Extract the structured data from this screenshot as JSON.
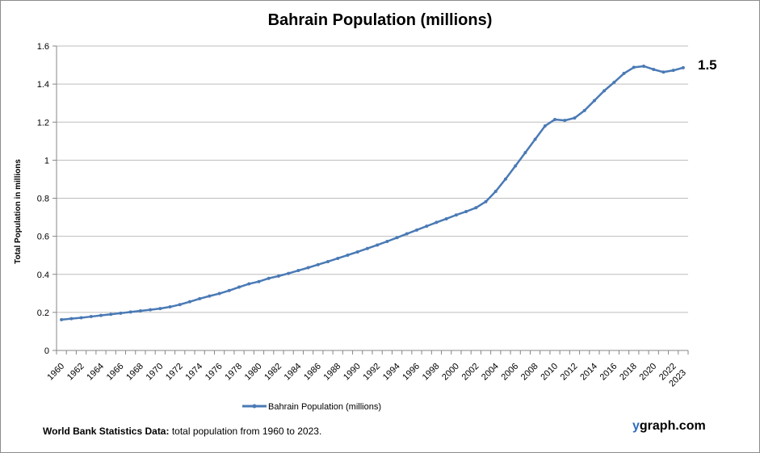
{
  "chart_data": {
    "type": "line",
    "title": "Bahrain Population (millions)",
    "xlabel": "",
    "ylabel": "Total Population  in millions",
    "ylim": [
      0,
      1.6
    ],
    "yticks": [
      "0",
      "0.2",
      "0.4",
      "0.6",
      "0.8",
      "1",
      "1.2",
      "1.4",
      "1.6"
    ],
    "grid": true,
    "legend_position": "bottom",
    "line_color": "#4a7ab5",
    "x": [
      1960,
      1961,
      1962,
      1963,
      1964,
      1965,
      1966,
      1967,
      1968,
      1969,
      1970,
      1971,
      1972,
      1973,
      1974,
      1975,
      1976,
      1977,
      1978,
      1979,
      1980,
      1981,
      1982,
      1983,
      1984,
      1985,
      1986,
      1987,
      1988,
      1989,
      1990,
      1991,
      1992,
      1993,
      1994,
      1995,
      1996,
      1997,
      1998,
      1999,
      2000,
      2001,
      2002,
      2003,
      2004,
      2005,
      2006,
      2007,
      2008,
      2009,
      2010,
      2011,
      2012,
      2013,
      2014,
      2015,
      2016,
      2017,
      2018,
      2019,
      2020,
      2021,
      2022,
      2023
    ],
    "xtick_labels": [
      "1960",
      "1962",
      "1964",
      "1966",
      "1968",
      "1970",
      "1972",
      "1974",
      "1976",
      "1978",
      "1980",
      "1982",
      "1984",
      "1986",
      "1988",
      "1990",
      "1992",
      "1994",
      "1996",
      "1998",
      "2000",
      "2002",
      "2004",
      "2006",
      "2008",
      "2010",
      "2012",
      "2014",
      "2016",
      "2018",
      "2020",
      "2022",
      "2023"
    ],
    "series": [
      {
        "name": "Bahrain Population (millions)",
        "values": [
          0.162,
          0.167,
          0.172,
          0.178,
          0.184,
          0.19,
          0.196,
          0.202,
          0.208,
          0.214,
          0.22,
          0.229,
          0.241,
          0.256,
          0.272,
          0.286,
          0.299,
          0.315,
          0.333,
          0.35,
          0.362,
          0.379,
          0.391,
          0.405,
          0.42,
          0.435,
          0.451,
          0.467,
          0.484,
          0.501,
          0.518,
          0.536,
          0.554,
          0.573,
          0.593,
          0.613,
          0.633,
          0.653,
          0.673,
          0.692,
          0.712,
          0.73,
          0.75,
          0.782,
          0.836,
          0.901,
          0.97,
          1.04,
          1.11,
          1.18,
          1.214,
          1.209,
          1.222,
          1.261,
          1.313,
          1.365,
          1.409,
          1.456,
          1.488,
          1.494,
          1.477,
          1.463,
          1.472,
          1.486
        ]
      }
    ],
    "annotation": "1.5"
  },
  "footer": {
    "bold": "World Bank Statistics Data:",
    "text": " total population from 1960 to 2023."
  },
  "brand": {
    "y": "y",
    "rest": "graph.com"
  }
}
